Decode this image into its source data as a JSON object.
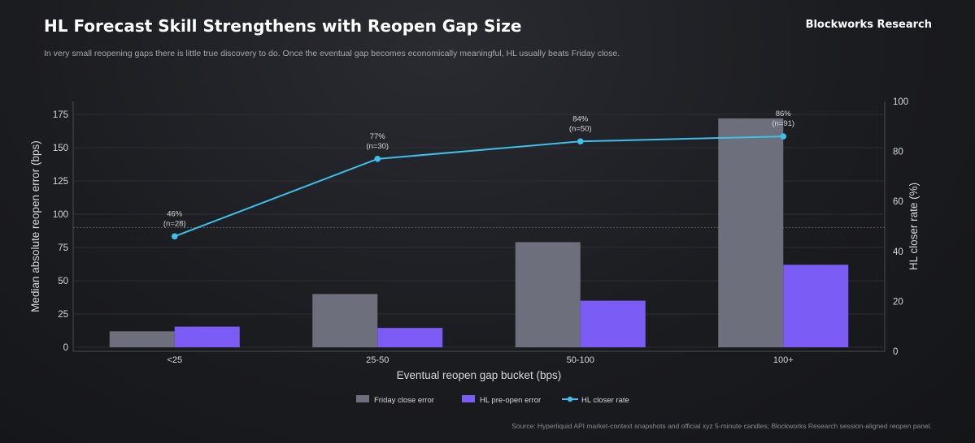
{
  "header": {
    "title": "HL Forecast Skill Strengthens with Reopen Gap Size",
    "brand": "Blockworks Research",
    "subtitle": "In very small reopening gaps there is little true discovery to do. Once the eventual gap becomes economically meaningful, HL usually beats Friday close.",
    "source": "Source: Hyperliquid API market-context snapshots and official xyz 5-minute candles; Blockworks Research session-aligned reopen panel."
  },
  "chart_data": {
    "type": "bar",
    "title": "HL Forecast Skill Strengthens with Reopen Gap Size",
    "categories": [
      "<25",
      "25-50",
      "50-100",
      "100+"
    ],
    "xlabel": "Eventual reopen gap bucket (bps)",
    "ylabel": "Median absolute reopen error (bps)",
    "y2label": "HL closer rate (%)",
    "ylim": [
      0,
      180
    ],
    "y2lim": [
      0,
      100
    ],
    "yticks": [
      0,
      25,
      50,
      75,
      100,
      125,
      150,
      175
    ],
    "y2ticks": [
      0,
      20,
      40,
      60,
      80,
      100
    ],
    "reference_line_y": 90,
    "series": [
      {
        "name": "Friday close error",
        "type": "bar",
        "axis": "left",
        "color": "#6e6f7c",
        "values": [
          12,
          40,
          79,
          172
        ]
      },
      {
        "name": "HL pre-open error",
        "type": "bar",
        "axis": "left",
        "color": "#7b5cf5",
        "values": [
          15.5,
          14.5,
          35,
          62
        ]
      },
      {
        "name": "HL closer rate",
        "type": "line",
        "axis": "right",
        "color": "#3dc0ea",
        "values": [
          46,
          77,
          84,
          86
        ],
        "labels": [
          "46%",
          "77%",
          "84%",
          "86%"
        ],
        "n_labels": [
          "(n=28)",
          "(n=30)",
          "(n=50)",
          "(n=91)"
        ]
      }
    ],
    "grid": true,
    "legend_position": "bottom-center"
  }
}
